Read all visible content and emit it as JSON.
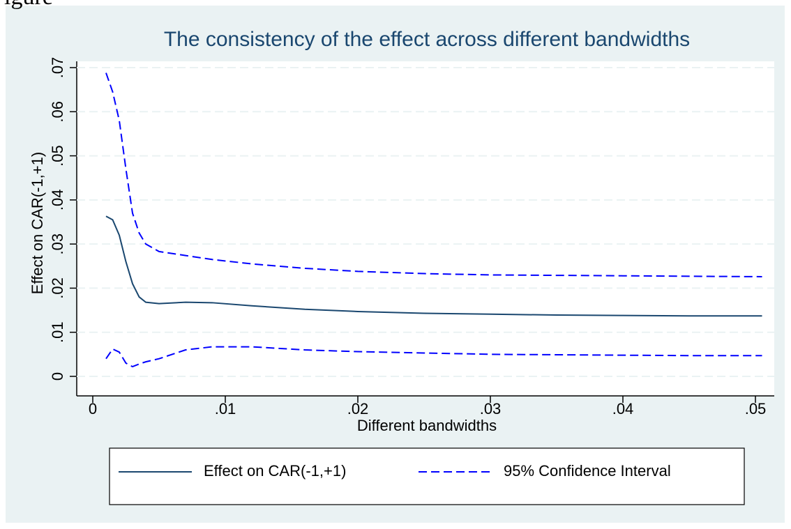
{
  "caption": "igure",
  "chart_data": {
    "type": "line",
    "title": "The consistency of the effect across different bandwidths",
    "xlabel": "Different bandwidths",
    "ylabel": "Effect on CAR(-1,+1)",
    "x": [
      0.001,
      0.0015,
      0.002,
      0.0025,
      0.003,
      0.0035,
      0.004,
      0.005,
      0.007,
      0.009,
      0.012,
      0.016,
      0.02,
      0.025,
      0.03,
      0.035,
      0.04,
      0.045,
      0.0505
    ],
    "series": [
      {
        "name": "Effect on CAR(-1,+1)",
        "color": "#1a476f",
        "style": "solid",
        "values": [
          0.0363,
          0.0355,
          0.032,
          0.026,
          0.021,
          0.018,
          0.0168,
          0.0165,
          0.0168,
          0.0167,
          0.016,
          0.0152,
          0.0147,
          0.0143,
          0.0141,
          0.0139,
          0.0138,
          0.0137,
          0.0137
        ]
      },
      {
        "name": "95% Confidence Interval",
        "color": "#0000ff",
        "style": "dashed",
        "upper": [
          0.0688,
          0.0645,
          0.058,
          0.047,
          0.037,
          0.0325,
          0.03,
          0.0283,
          0.0274,
          0.0265,
          0.0255,
          0.0245,
          0.0238,
          0.0233,
          0.023,
          0.0229,
          0.0228,
          0.0227,
          0.0226
        ],
        "lower": [
          0.004,
          0.0062,
          0.0055,
          0.003,
          0.0022,
          0.0028,
          0.0033,
          0.004,
          0.006,
          0.0067,
          0.0067,
          0.006,
          0.0056,
          0.0053,
          0.005,
          0.0049,
          0.0048,
          0.0047,
          0.0047
        ]
      }
    ],
    "xlim": [
      0,
      0.05
    ],
    "ylim": [
      0,
      0.07
    ],
    "xticks": [
      0,
      {
        "value": 0.01,
        "label": ".01"
      },
      {
        "value": 0.02,
        "label": ".02"
      },
      {
        "value": 0.03,
        "label": ".03"
      },
      {
        "value": 0.04,
        "label": ".04"
      },
      {
        "value": 0.05,
        "label": ".05"
      }
    ],
    "yticks": [
      0,
      {
        "value": 0.01,
        "label": ".01"
      },
      {
        "value": 0.02,
        "label": ".02"
      },
      {
        "value": 0.03,
        "label": ".03"
      },
      {
        "value": 0.04,
        "label": ".04"
      },
      {
        "value": 0.05,
        "label": ".05"
      },
      {
        "value": 0.06,
        "label": ".06"
      },
      {
        "value": 0.07,
        "label": ".07"
      }
    ],
    "grid": true,
    "legend": "bottom"
  }
}
